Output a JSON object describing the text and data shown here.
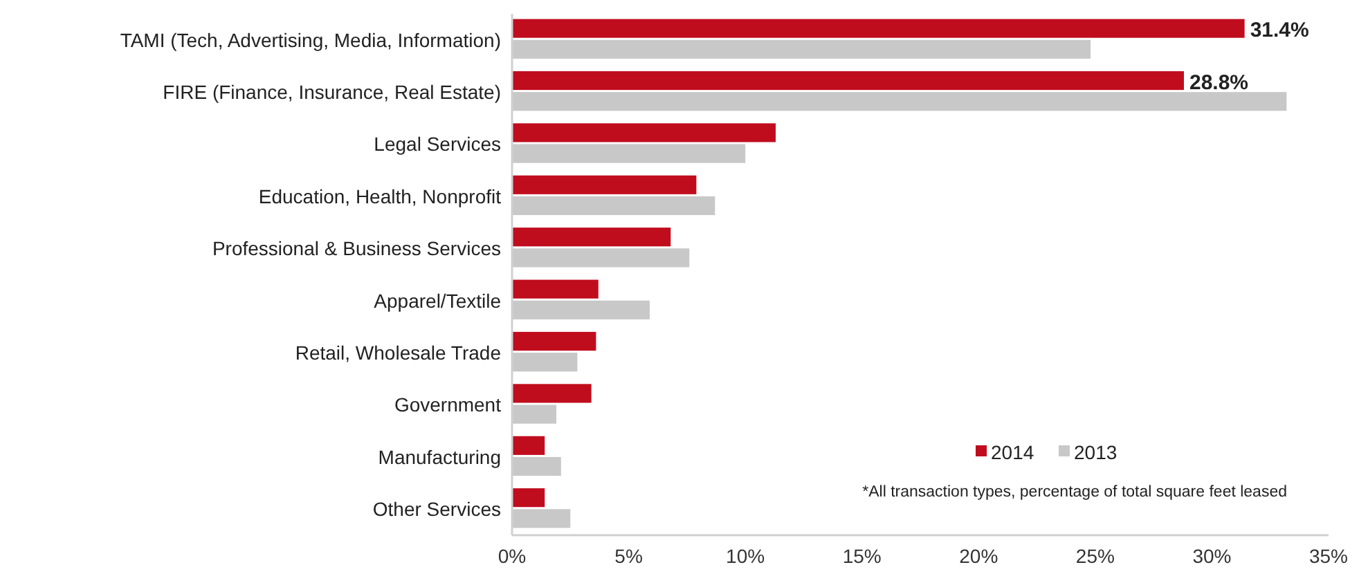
{
  "chart_data": {
    "type": "bar",
    "orientation": "horizontal",
    "categories": [
      "TAMI (Tech, Advertising, Media, Information)",
      "FIRE (Finance, Insurance, Real Estate)",
      "Legal Services",
      "Education, Health, Nonprofit",
      "Professional & Business Services",
      "Apparel/Textile",
      "Retail, Wholesale Trade",
      "Government",
      "Manufacturing",
      "Other Services"
    ],
    "series": [
      {
        "name": "2014",
        "color": "#c00d1e",
        "values": [
          31.4,
          28.8,
          11.3,
          7.9,
          6.8,
          3.7,
          3.6,
          3.4,
          1.4,
          1.4
        ],
        "value_labels": [
          "31.4%",
          "28.8%",
          null,
          null,
          null,
          null,
          null,
          null,
          null,
          null
        ]
      },
      {
        "name": "2013",
        "color": "#c8c8c8",
        "values": [
          24.8,
          33.2,
          10.0,
          8.7,
          7.6,
          5.9,
          2.8,
          1.9,
          2.1,
          2.5
        ]
      }
    ],
    "xlim": [
      0,
      35
    ],
    "xticks": [
      {
        "value": 0,
        "label": "0%"
      },
      {
        "value": 5,
        "label": "5%"
      },
      {
        "value": 10,
        "label": "10%"
      },
      {
        "value": 15,
        "label": "15%"
      },
      {
        "value": 20,
        "label": "20%"
      },
      {
        "value": 25,
        "label": "25%"
      },
      {
        "value": 30,
        "label": "30%"
      },
      {
        "value": 35,
        "label": "35%"
      }
    ],
    "legend": "bottom right",
    "annotations": [
      "*All transaction types, percentage of total square feet leased"
    ]
  }
}
